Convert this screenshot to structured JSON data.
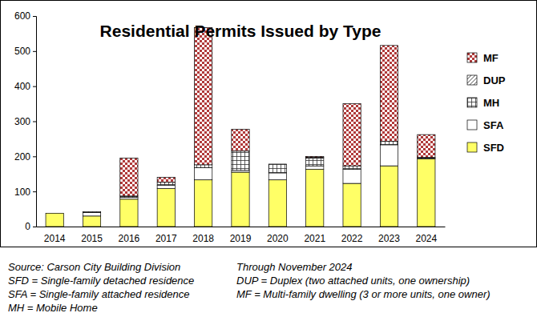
{
  "chart_data": {
    "type": "bar",
    "title": "Residential Permits Issued by Type",
    "categories": [
      "2014",
      "2015",
      "2016",
      "2017",
      "2018",
      "2019",
      "2020",
      "2021",
      "2022",
      "2023",
      "2024"
    ],
    "series": [
      {
        "name": "SFD",
        "color": "#ffff66",
        "values": [
          38,
          30,
          78,
          108,
          133,
          155,
          133,
          163,
          123,
          173,
          193
        ]
      },
      {
        "name": "SFA",
        "color": "#ffffff",
        "values": [
          0,
          10,
          5,
          10,
          35,
          5,
          20,
          10,
          40,
          60,
          2
        ]
      },
      {
        "name": "MH",
        "color": "#ffffff",
        "values": [
          0,
          2,
          4,
          8,
          8,
          55,
          25,
          22,
          10,
          10,
          2
        ]
      },
      {
        "name": "DUP",
        "color": "#ffffff",
        "values": [
          0,
          0,
          0,
          0,
          0,
          0,
          0,
          2,
          0,
          0,
          0
        ]
      },
      {
        "name": "MF",
        "color": "#b03a3a",
        "values": [
          0,
          0,
          108,
          14,
          391,
          62,
          0,
          3,
          177,
          273,
          65
        ]
      }
    ],
    "ylim": [
      0,
      600
    ],
    "yticks": [
      0,
      100,
      200,
      300,
      400,
      500,
      600
    ],
    "stacked": true,
    "grid": false,
    "legend": "right",
    "annotations": [
      [
        "Source: Carson City Building Division",
        "SFD = Single-family detached residence",
        "SFA = Single-family attached residence",
        "MH = Mobile Home"
      ],
      [
        "Through November 2024",
        "DUP = Duplex (two attached units, one ownership)",
        "MF = Multi-family dwelling (3 or more units, one owner)"
      ]
    ]
  }
}
